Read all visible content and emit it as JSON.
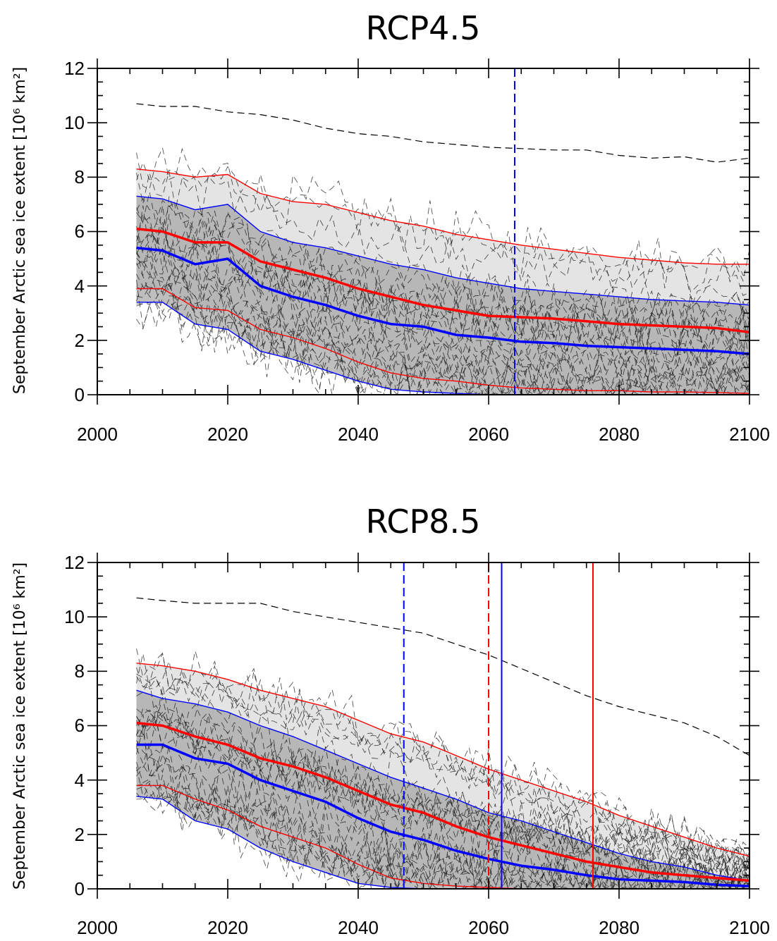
{
  "chart_data": [
    {
      "type": "line",
      "title": "RCP4.5",
      "xlabel": "",
      "ylabel": "September Arctic sea ice extent [10⁶ km²]",
      "xlim": [
        2000,
        2100
      ],
      "ylim": [
        0,
        12
      ],
      "xticks": [
        "2000",
        "2020",
        "2040",
        "2060",
        "2080",
        "2100"
      ],
      "yticks": [
        "0",
        "2",
        "4",
        "6",
        "8",
        "10",
        "12"
      ],
      "x": [
        2006,
        2010,
        2015,
        2020,
        2025,
        2030,
        2035,
        2040,
        2045,
        2050,
        2055,
        2060,
        2065,
        2070,
        2075,
        2080,
        2085,
        2090,
        2095,
        2100
      ],
      "series": [
        {
          "role": "mean",
          "color": "#ff0000",
          "values": [
            6.1,
            6.0,
            5.6,
            5.6,
            4.9,
            4.6,
            4.3,
            3.9,
            3.6,
            3.3,
            3.1,
            2.9,
            2.85,
            2.8,
            2.7,
            2.6,
            2.55,
            2.5,
            2.45,
            2.3
          ]
        },
        {
          "role": "upper",
          "color": "#ff0000",
          "values": [
            8.3,
            8.2,
            8.0,
            8.1,
            7.4,
            7.1,
            7.0,
            6.7,
            6.4,
            6.2,
            5.9,
            5.7,
            5.5,
            5.35,
            5.2,
            5.05,
            4.95,
            4.85,
            4.8,
            4.8
          ]
        },
        {
          "role": "lower",
          "color": "#ff0000",
          "values": [
            3.9,
            3.9,
            3.2,
            3.1,
            2.4,
            2.1,
            1.7,
            1.2,
            0.8,
            0.6,
            0.5,
            0.35,
            0.25,
            0.2,
            0.15,
            0.15,
            0.1,
            0.1,
            0.08,
            0.05
          ]
        },
        {
          "role": "mean",
          "color": "#0000ff",
          "values": [
            5.4,
            5.3,
            4.8,
            5.0,
            4.0,
            3.6,
            3.3,
            2.9,
            2.6,
            2.5,
            2.2,
            2.1,
            1.95,
            1.9,
            1.8,
            1.75,
            1.7,
            1.65,
            1.6,
            1.5
          ]
        },
        {
          "role": "upper",
          "color": "#0000ff",
          "values": [
            7.3,
            7.2,
            6.8,
            7.0,
            6.0,
            5.6,
            5.4,
            5.1,
            4.8,
            4.6,
            4.3,
            4.1,
            3.9,
            3.8,
            3.7,
            3.6,
            3.5,
            3.45,
            3.4,
            3.3
          ]
        },
        {
          "role": "lower",
          "color": "#0000ff",
          "values": [
            3.4,
            3.4,
            2.6,
            2.4,
            1.6,
            1.3,
            0.9,
            0.5,
            0.2,
            0.1,
            0.05,
            0.0,
            0.0,
            0.0,
            0.0,
            0.0,
            0.0,
            0.0,
            0.0,
            0.0
          ]
        },
        {
          "role": "max-model",
          "color": "#000000",
          "values": [
            10.7,
            10.6,
            10.6,
            10.4,
            10.3,
            10.1,
            9.8,
            9.6,
            9.5,
            9.3,
            9.2,
            9.1,
            9.05,
            9.0,
            9.0,
            8.8,
            8.7,
            8.75,
            8.55,
            8.7
          ]
        }
      ],
      "vlines": [
        {
          "x": 2064,
          "color": "#0000ff",
          "style": "dashed"
        }
      ],
      "grid": false,
      "legend": "none"
    },
    {
      "type": "line",
      "title": "RCP8.5",
      "xlabel": "",
      "ylabel": "September Arctic sea ice extent [10⁶ km²]",
      "xlim": [
        2000,
        2100
      ],
      "ylim": [
        0,
        12
      ],
      "xticks": [
        "2000",
        "2020",
        "2040",
        "2060",
        "2080",
        "2100"
      ],
      "yticks": [
        "0",
        "2",
        "4",
        "6",
        "8",
        "10",
        "12"
      ],
      "x": [
        2006,
        2010,
        2015,
        2020,
        2025,
        2030,
        2035,
        2040,
        2045,
        2050,
        2055,
        2060,
        2065,
        2070,
        2075,
        2080,
        2085,
        2090,
        2095,
        2100
      ],
      "series": [
        {
          "role": "mean",
          "color": "#ff0000",
          "values": [
            6.1,
            6.0,
            5.6,
            5.3,
            4.8,
            4.5,
            4.1,
            3.6,
            3.1,
            2.8,
            2.3,
            1.9,
            1.6,
            1.3,
            1.0,
            0.8,
            0.6,
            0.5,
            0.4,
            0.3
          ]
        },
        {
          "role": "upper",
          "color": "#ff0000",
          "values": [
            8.3,
            8.2,
            8.0,
            7.7,
            7.3,
            7.0,
            6.7,
            6.2,
            5.7,
            5.4,
            4.9,
            4.4,
            4.0,
            3.6,
            3.2,
            2.7,
            2.3,
            1.9,
            1.5,
            1.2
          ]
        },
        {
          "role": "lower",
          "color": "#ff0000",
          "values": [
            3.8,
            3.8,
            3.3,
            2.9,
            2.3,
            1.9,
            1.5,
            0.9,
            0.4,
            0.2,
            0.1,
            0.05,
            0.0,
            0.0,
            0.0,
            0.0,
            0.0,
            0.0,
            0.0,
            0.0
          ]
        },
        {
          "role": "mean",
          "color": "#0000ff",
          "values": [
            5.3,
            5.3,
            4.8,
            4.6,
            4.0,
            3.6,
            3.2,
            2.6,
            2.1,
            1.8,
            1.4,
            1.1,
            0.85,
            0.7,
            0.5,
            0.35,
            0.3,
            0.25,
            0.15,
            0.1
          ]
        },
        {
          "role": "upper",
          "color": "#0000ff",
          "values": [
            7.3,
            7.0,
            6.8,
            6.5,
            6.0,
            5.6,
            5.1,
            4.6,
            4.1,
            3.7,
            3.3,
            2.8,
            2.5,
            2.1,
            1.7,
            1.3,
            1.0,
            0.8,
            0.5,
            0.3
          ]
        },
        {
          "role": "lower",
          "color": "#0000ff",
          "values": [
            3.4,
            3.3,
            2.5,
            2.2,
            1.5,
            1.0,
            0.6,
            0.2,
            0.05,
            0.0,
            0.0,
            0.0,
            0.0,
            0.0,
            0.0,
            0.0,
            0.0,
            0.0,
            0.0,
            0.0
          ]
        },
        {
          "role": "max-model",
          "color": "#000000",
          "values": [
            10.7,
            10.6,
            10.5,
            10.5,
            10.5,
            10.2,
            10.0,
            9.8,
            9.6,
            9.4,
            9.0,
            8.6,
            8.1,
            7.6,
            7.1,
            6.7,
            6.4,
            6.1,
            5.6,
            4.9
          ]
        }
      ],
      "vlines": [
        {
          "x": 2047,
          "color": "#0000ff",
          "style": "dashed"
        },
        {
          "x": 2060,
          "color": "#ff0000",
          "style": "dashed"
        },
        {
          "x": 2062,
          "color": "#0000ff",
          "style": "solid"
        },
        {
          "x": 2076,
          "color": "#ff0000",
          "style": "solid"
        }
      ],
      "grid": false,
      "legend": "none"
    }
  ]
}
